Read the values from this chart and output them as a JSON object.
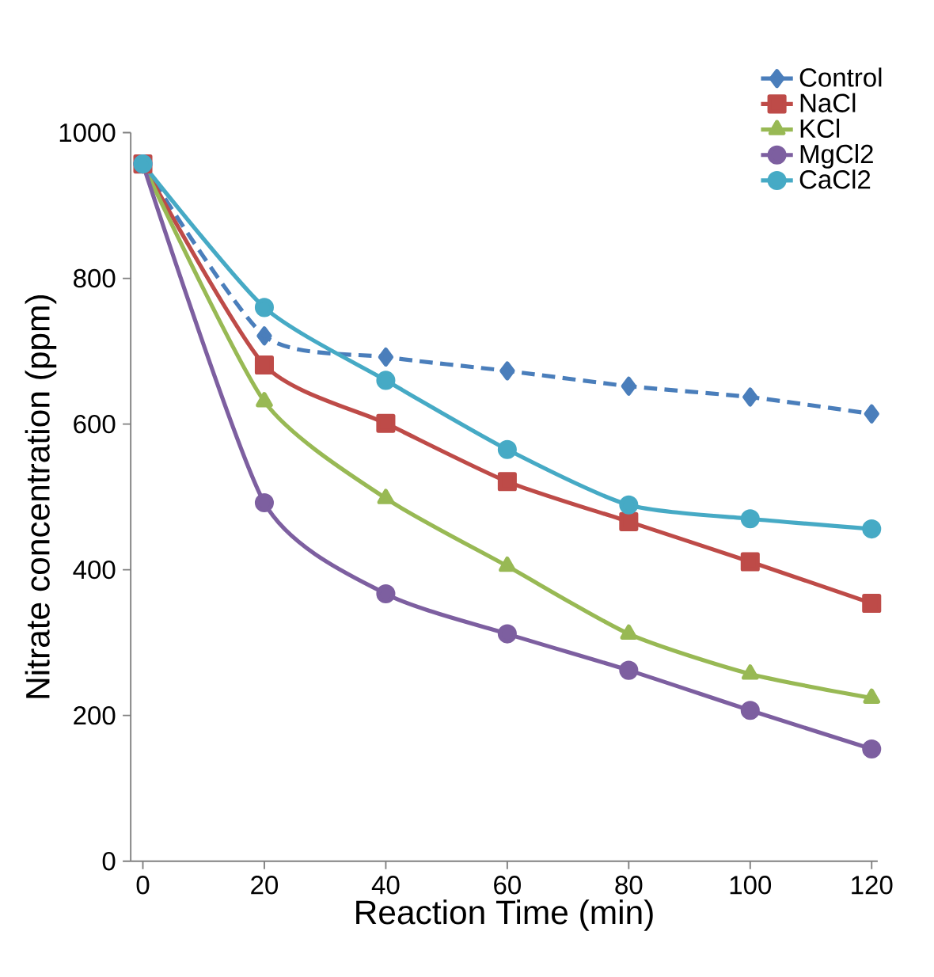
{
  "chart_data": {
    "type": "line",
    "xlabel": "Reaction Time (min)",
    "ylabel": "Nitrate concentration (ppm)",
    "x": [
      0,
      20,
      40,
      60,
      80,
      100,
      120
    ],
    "series": [
      {
        "name": "Control",
        "color": "#4a7ebb",
        "marker": "diamond",
        "line_style": "dashed",
        "values": [
          957,
          721,
          692,
          673,
          652,
          637,
          614
        ]
      },
      {
        "name": "NaCl",
        "color": "#be4b48",
        "marker": "square",
        "line_style": "solid",
        "values": [
          957,
          681,
          601,
          521,
          466,
          411,
          354
        ]
      },
      {
        "name": "KCl",
        "color": "#98b954",
        "marker": "triangle",
        "line_style": "solid",
        "values": [
          957,
          631,
          498,
          405,
          312,
          257,
          224
        ]
      },
      {
        "name": "MgCl2",
        "color": "#7d5fa0",
        "marker": "circle",
        "line_style": "solid",
        "values": [
          957,
          492,
          367,
          312,
          262,
          207,
          154
        ]
      },
      {
        "name": "CaCl2",
        "color": "#46aac5",
        "marker": "circle",
        "line_style": "solid",
        "values": [
          957,
          760,
          660,
          565,
          489,
          470,
          456
        ]
      }
    ],
    "xlim": [
      -2,
      121
    ],
    "xticks": [
      0,
      20,
      40,
      60,
      80,
      100,
      120
    ],
    "ylim": [
      0,
      1000
    ],
    "yticks": [
      0,
      200,
      400,
      600,
      800,
      1000
    ],
    "grid": false,
    "legend": "top right"
  }
}
